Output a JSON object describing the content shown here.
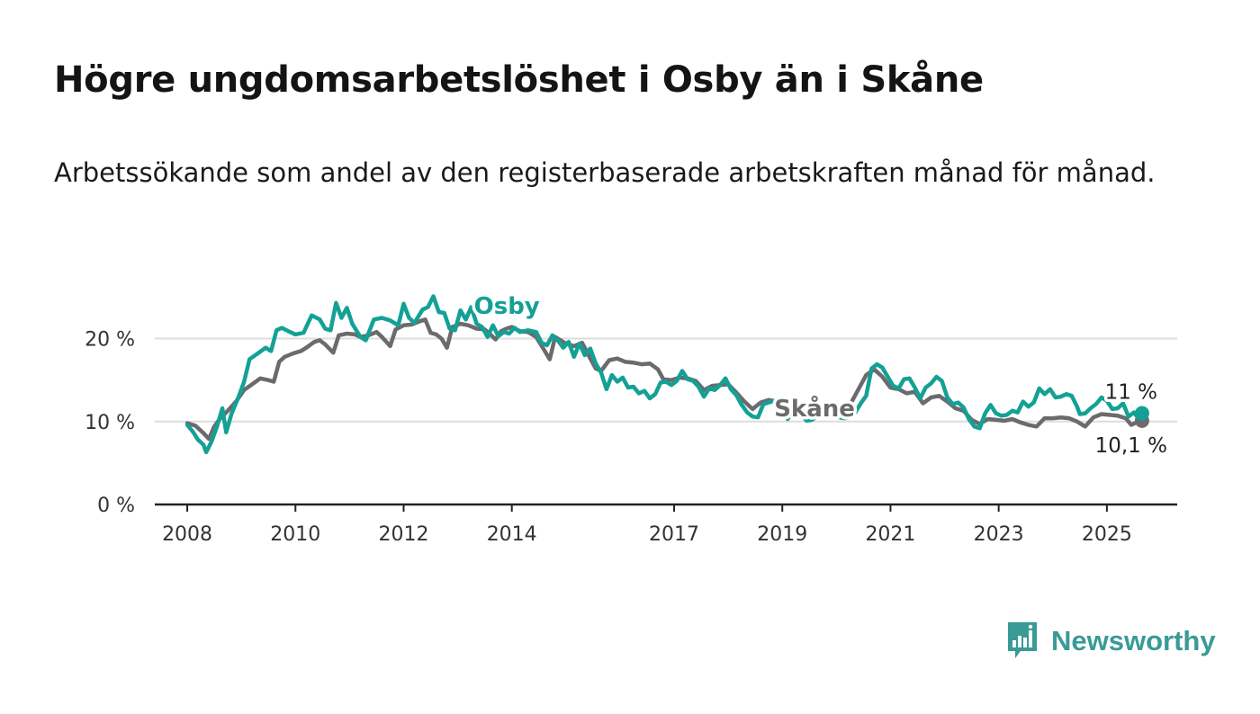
{
  "title": "Högre ungdomsarbetslöshet i Osby än i Skåne",
  "subtitle": "Arbetssökande som andel av den registerbaserade arbetskraften månad för månad.",
  "brand": {
    "name": "Newsworthy",
    "icon": "bar-chart-speech-bubble-icon",
    "color": "#3a9a96"
  },
  "chart_data": {
    "type": "line",
    "x_ticks": [
      "2008",
      "2010",
      "2012",
      "2014",
      "2017",
      "2019",
      "2021",
      "2023",
      "2025"
    ],
    "y_ticks": [
      "0 %",
      "10 %",
      "20 %"
    ],
    "ylim": [
      0,
      27
    ],
    "xlim": [
      2007.4,
      2026.3
    ],
    "grid": true,
    "series": [
      {
        "name": "Osby",
        "color": "#13a196",
        "end_label": "11 %",
        "points": [
          [
            2008.0,
            9.6
          ],
          [
            2008.1,
            8.8
          ],
          [
            2008.2,
            7.8
          ],
          [
            2008.3,
            7.2
          ],
          [
            2008.35,
            6.3
          ],
          [
            2008.45,
            7.6
          ],
          [
            2008.55,
            9.4
          ],
          [
            2008.65,
            11.6
          ],
          [
            2008.72,
            8.7
          ],
          [
            2008.82,
            11.0
          ],
          [
            2008.95,
            13.0
          ],
          [
            2009.05,
            14.8
          ],
          [
            2009.15,
            17.5
          ],
          [
            2009.3,
            18.2
          ],
          [
            2009.45,
            18.9
          ],
          [
            2009.55,
            18.5
          ],
          [
            2009.65,
            21.0
          ],
          [
            2009.75,
            21.3
          ],
          [
            2009.9,
            20.8
          ],
          [
            2010.0,
            20.5
          ],
          [
            2010.15,
            20.7
          ],
          [
            2010.3,
            22.8
          ],
          [
            2010.45,
            22.3
          ],
          [
            2010.55,
            21.2
          ],
          [
            2010.65,
            21.0
          ],
          [
            2010.75,
            24.3
          ],
          [
            2010.85,
            22.5
          ],
          [
            2010.95,
            23.7
          ],
          [
            2011.05,
            21.8
          ],
          [
            2011.2,
            20.2
          ],
          [
            2011.3,
            19.8
          ],
          [
            2011.45,
            22.3
          ],
          [
            2011.6,
            22.5
          ],
          [
            2011.75,
            22.2
          ],
          [
            2011.9,
            21.6
          ],
          [
            2012.0,
            24.2
          ],
          [
            2012.1,
            22.5
          ],
          [
            2012.2,
            21.9
          ],
          [
            2012.35,
            23.5
          ],
          [
            2012.45,
            23.8
          ],
          [
            2012.55,
            25.1
          ],
          [
            2012.65,
            23.2
          ],
          [
            2012.75,
            23.1
          ],
          [
            2012.85,
            21.2
          ],
          [
            2012.95,
            21.0
          ],
          [
            2013.05,
            23.4
          ],
          [
            2013.15,
            22.3
          ],
          [
            2013.25,
            23.8
          ],
          [
            2013.35,
            21.8
          ],
          [
            2013.45,
            21.4
          ],
          [
            2013.55,
            20.2
          ],
          [
            2013.65,
            21.6
          ],
          [
            2013.75,
            20.3
          ],
          [
            2013.85,
            20.8
          ],
          [
            2013.95,
            20.6
          ],
          [
            2014.05,
            21.3
          ],
          [
            2014.15,
            20.8
          ],
          [
            2014.3,
            21.0
          ],
          [
            2014.45,
            20.8
          ],
          [
            2014.55,
            19.5
          ],
          [
            2014.65,
            19.2
          ],
          [
            2014.75,
            20.4
          ],
          [
            2014.85,
            19.8
          ],
          [
            2014.95,
            18.9
          ],
          [
            2015.05,
            19.6
          ],
          [
            2015.15,
            17.8
          ],
          [
            2015.25,
            19.4
          ],
          [
            2015.35,
            18.0
          ],
          [
            2015.45,
            18.8
          ],
          [
            2015.55,
            17.0
          ],
          [
            2015.65,
            15.9
          ],
          [
            2015.75,
            13.9
          ],
          [
            2015.85,
            15.6
          ],
          [
            2015.95,
            14.8
          ],
          [
            2016.05,
            15.3
          ],
          [
            2016.15,
            14.1
          ],
          [
            2016.25,
            14.2
          ],
          [
            2016.35,
            13.4
          ],
          [
            2016.45,
            13.7
          ],
          [
            2016.55,
            12.8
          ],
          [
            2016.65,
            13.3
          ],
          [
            2016.75,
            14.7
          ],
          [
            2016.85,
            14.8
          ],
          [
            2016.95,
            14.4
          ],
          [
            2017.05,
            14.9
          ],
          [
            2017.15,
            16.1
          ],
          [
            2017.25,
            15.1
          ],
          [
            2017.35,
            14.9
          ],
          [
            2017.45,
            14.2
          ],
          [
            2017.55,
            13.0
          ],
          [
            2017.65,
            14.0
          ],
          [
            2017.75,
            13.8
          ],
          [
            2017.85,
            14.4
          ],
          [
            2017.95,
            15.2
          ],
          [
            2018.05,
            13.9
          ],
          [
            2018.15,
            13.2
          ],
          [
            2018.25,
            12.0
          ],
          [
            2018.35,
            11.1
          ],
          [
            2018.45,
            10.6
          ],
          [
            2018.55,
            10.5
          ],
          [
            2018.65,
            12.1
          ],
          [
            2018.75,
            12.3
          ],
          [
            2018.85,
            12.5
          ],
          [
            2018.95,
            11.8
          ],
          [
            2019.1,
            10.3
          ],
          [
            2019.2,
            11.4
          ],
          [
            2019.35,
            10.8
          ],
          [
            2019.45,
            10.1
          ],
          [
            2019.55,
            10.2
          ],
          [
            2019.65,
            10.7
          ],
          [
            2019.75,
            11.2
          ],
          [
            2019.85,
            10.5
          ],
          [
            2019.95,
            11.0
          ],
          [
            2020.05,
            10.5
          ],
          [
            2020.15,
            10.4
          ],
          [
            2020.25,
            10.5
          ],
          [
            2020.35,
            11.1
          ],
          [
            2020.45,
            12.2
          ],
          [
            2020.55,
            13.1
          ],
          [
            2020.65,
            16.4
          ],
          [
            2020.75,
            16.9
          ],
          [
            2020.85,
            16.5
          ],
          [
            2020.95,
            15.4
          ],
          [
            2021.05,
            14.3
          ],
          [
            2021.15,
            14.0
          ],
          [
            2021.25,
            15.1
          ],
          [
            2021.35,
            15.2
          ],
          [
            2021.45,
            14.1
          ],
          [
            2021.55,
            12.8
          ],
          [
            2021.65,
            14.1
          ],
          [
            2021.75,
            14.6
          ],
          [
            2021.85,
            15.4
          ],
          [
            2021.95,
            14.9
          ],
          [
            2022.05,
            12.9
          ],
          [
            2022.15,
            12.1
          ],
          [
            2022.25,
            12.3
          ],
          [
            2022.35,
            11.7
          ],
          [
            2022.45,
            10.3
          ],
          [
            2022.55,
            9.4
          ],
          [
            2022.65,
            9.2
          ],
          [
            2022.75,
            11.0
          ],
          [
            2022.85,
            12.0
          ],
          [
            2022.95,
            11.0
          ],
          [
            2023.05,
            10.7
          ],
          [
            2023.15,
            10.8
          ],
          [
            2023.25,
            11.3
          ],
          [
            2023.35,
            11.1
          ],
          [
            2023.45,
            12.4
          ],
          [
            2023.55,
            11.8
          ],
          [
            2023.65,
            12.3
          ],
          [
            2023.75,
            14.0
          ],
          [
            2023.85,
            13.3
          ],
          [
            2023.95,
            13.9
          ],
          [
            2024.05,
            12.9
          ],
          [
            2024.15,
            13.0
          ],
          [
            2024.25,
            13.3
          ],
          [
            2024.35,
            13.1
          ],
          [
            2024.45,
            11.8
          ],
          [
            2024.5,
            10.9
          ],
          [
            2024.6,
            11.0
          ],
          [
            2024.7,
            11.6
          ],
          [
            2024.8,
            12.1
          ],
          [
            2024.9,
            12.9
          ],
          [
            2025.0,
            12.5
          ],
          [
            2025.1,
            11.5
          ],
          [
            2025.2,
            11.6
          ],
          [
            2025.3,
            12.2
          ],
          [
            2025.4,
            10.6
          ],
          [
            2025.5,
            11.1
          ],
          [
            2025.57,
            10.5
          ],
          [
            2025.65,
            11.0
          ]
        ]
      },
      {
        "name": "Skåne",
        "color": "#6b6b6e",
        "end_label": "10,1 %",
        "points": [
          [
            2008.0,
            9.8
          ],
          [
            2008.15,
            9.5
          ],
          [
            2008.3,
            8.6
          ],
          [
            2008.4,
            7.9
          ],
          [
            2008.5,
            9.4
          ],
          [
            2008.6,
            10.3
          ],
          [
            2008.75,
            11.3
          ],
          [
            2008.9,
            12.4
          ],
          [
            2009.05,
            13.8
          ],
          [
            2009.2,
            14.5
          ],
          [
            2009.35,
            15.2
          ],
          [
            2009.5,
            15.0
          ],
          [
            2009.6,
            14.8
          ],
          [
            2009.7,
            17.2
          ],
          [
            2009.8,
            17.8
          ],
          [
            2009.95,
            18.2
          ],
          [
            2010.1,
            18.5
          ],
          [
            2010.2,
            18.9
          ],
          [
            2010.35,
            19.6
          ],
          [
            2010.45,
            19.8
          ],
          [
            2010.55,
            19.3
          ],
          [
            2010.7,
            18.3
          ],
          [
            2010.8,
            20.4
          ],
          [
            2010.95,
            20.6
          ],
          [
            2011.1,
            20.5
          ],
          [
            2011.2,
            20.2
          ],
          [
            2011.35,
            20.4
          ],
          [
            2011.5,
            20.8
          ],
          [
            2011.6,
            20.2
          ],
          [
            2011.75,
            19.1
          ],
          [
            2011.85,
            21.1
          ],
          [
            2012.0,
            21.6
          ],
          [
            2012.15,
            21.7
          ],
          [
            2012.3,
            22.1
          ],
          [
            2012.4,
            22.3
          ],
          [
            2012.5,
            20.7
          ],
          [
            2012.6,
            20.5
          ],
          [
            2012.7,
            20.0
          ],
          [
            2012.8,
            18.9
          ],
          [
            2012.9,
            21.4
          ],
          [
            2013.05,
            21.8
          ],
          [
            2013.2,
            21.6
          ],
          [
            2013.35,
            21.2
          ],
          [
            2013.5,
            21.1
          ],
          [
            2013.6,
            20.5
          ],
          [
            2013.7,
            19.9
          ],
          [
            2013.8,
            20.9
          ],
          [
            2013.9,
            21.2
          ],
          [
            2014.0,
            21.4
          ],
          [
            2014.15,
            20.9
          ],
          [
            2014.3,
            20.8
          ],
          [
            2014.45,
            20.2
          ],
          [
            2014.6,
            18.6
          ],
          [
            2014.7,
            17.5
          ],
          [
            2014.8,
            20.2
          ],
          [
            2014.9,
            19.8
          ],
          [
            2015.0,
            19.4
          ],
          [
            2015.15,
            19.1
          ],
          [
            2015.3,
            19.5
          ],
          [
            2015.45,
            17.6
          ],
          [
            2015.55,
            16.4
          ],
          [
            2015.65,
            16.1
          ],
          [
            2015.8,
            17.4
          ],
          [
            2015.95,
            17.6
          ],
          [
            2016.1,
            17.2
          ],
          [
            2016.25,
            17.1
          ],
          [
            2016.4,
            16.9
          ],
          [
            2016.55,
            17.0
          ],
          [
            2016.7,
            16.3
          ],
          [
            2016.8,
            15.1
          ],
          [
            2016.95,
            15.0
          ],
          [
            2017.1,
            15.3
          ],
          [
            2017.25,
            15.2
          ],
          [
            2017.4,
            14.9
          ],
          [
            2017.55,
            13.8
          ],
          [
            2017.7,
            14.3
          ],
          [
            2017.85,
            14.4
          ],
          [
            2018.0,
            14.5
          ],
          [
            2018.15,
            13.5
          ],
          [
            2018.3,
            12.4
          ],
          [
            2018.45,
            11.5
          ],
          [
            2018.6,
            12.3
          ],
          [
            2018.75,
            12.6
          ],
          [
            2018.9,
            12.4
          ],
          [
            2019.05,
            11.6
          ],
          [
            2019.2,
            10.9
          ],
          [
            2019.35,
            11.5
          ],
          [
            2019.5,
            10.6
          ],
          [
            2019.65,
            10.7
          ],
          [
            2019.8,
            11.2
          ],
          [
            2019.95,
            11.1
          ],
          [
            2020.1,
            11.4
          ],
          [
            2020.25,
            12.0
          ],
          [
            2020.4,
            13.8
          ],
          [
            2020.55,
            15.6
          ],
          [
            2020.7,
            16.3
          ],
          [
            2020.85,
            15.4
          ],
          [
            2021.0,
            14.1
          ],
          [
            2021.15,
            13.9
          ],
          [
            2021.3,
            13.4
          ],
          [
            2021.45,
            13.6
          ],
          [
            2021.6,
            12.2
          ],
          [
            2021.75,
            12.9
          ],
          [
            2021.9,
            13.1
          ],
          [
            2022.05,
            12.4
          ],
          [
            2022.2,
            11.6
          ],
          [
            2022.35,
            11.3
          ],
          [
            2022.5,
            10.2
          ],
          [
            2022.65,
            9.7
          ],
          [
            2022.8,
            10.3
          ],
          [
            2022.95,
            10.2
          ],
          [
            2023.1,
            10.1
          ],
          [
            2023.25,
            10.3
          ],
          [
            2023.4,
            9.9
          ],
          [
            2023.55,
            9.6
          ],
          [
            2023.7,
            9.4
          ],
          [
            2023.85,
            10.4
          ],
          [
            2024.0,
            10.4
          ],
          [
            2024.15,
            10.5
          ],
          [
            2024.3,
            10.4
          ],
          [
            2024.45,
            10.0
          ],
          [
            2024.6,
            9.4
          ],
          [
            2024.75,
            10.5
          ],
          [
            2024.9,
            10.9
          ],
          [
            2025.05,
            10.8
          ],
          [
            2025.2,
            10.7
          ],
          [
            2025.35,
            10.4
          ],
          [
            2025.45,
            9.6
          ],
          [
            2025.55,
            9.9
          ],
          [
            2025.65,
            10.1
          ]
        ]
      }
    ]
  }
}
